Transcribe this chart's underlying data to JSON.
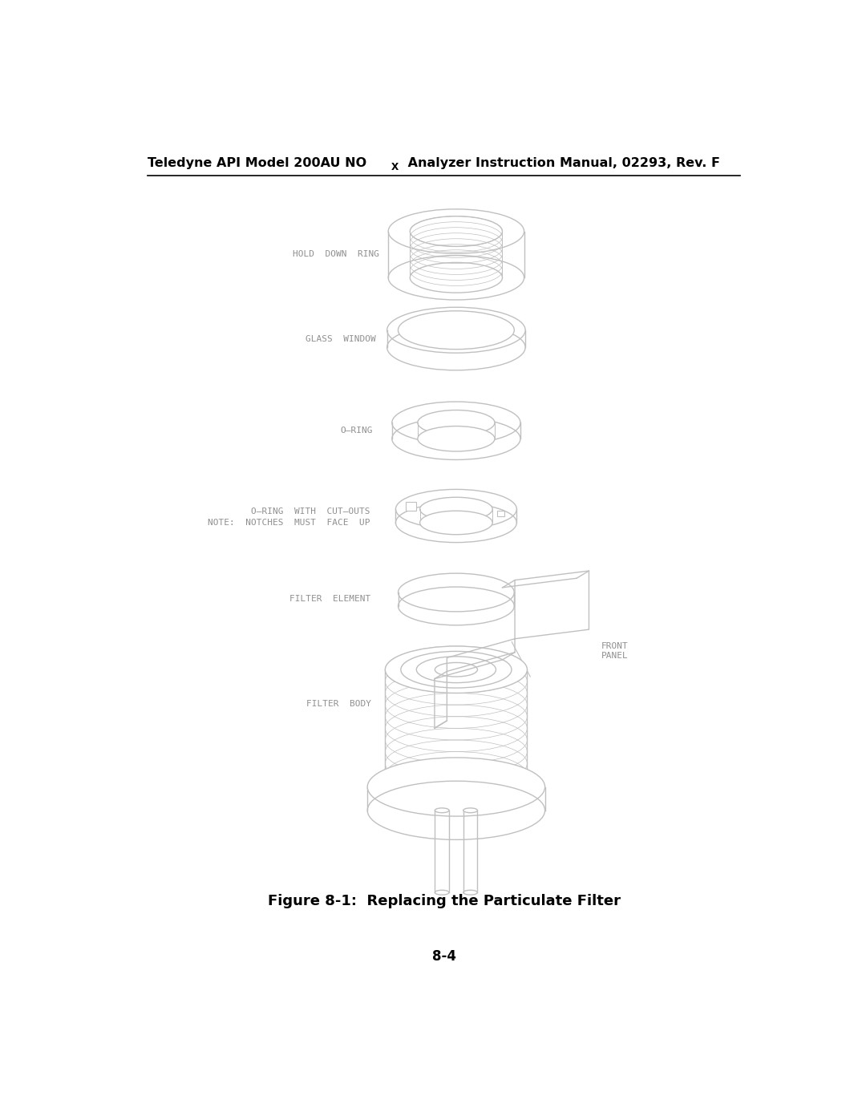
{
  "page_title_main": "Teledyne API Model 200AU NO",
  "page_title_sub": "X",
  "page_title_rest": " Analyzer Instruction Manual, 02293, Rev. F",
  "figure_caption": "Figure 8-1:  Replacing the Particulate Filter",
  "page_number": "8-4",
  "background_color": "#ffffff",
  "line_color": "#c0c0c0",
  "text_color": "#909090",
  "header_text_color": "#000000",
  "caption_color": "#000000",
  "labels": {
    "hold_down_ring": "HOLD  DOWN  RING",
    "glass_window": "GLASS  WINDOW",
    "o_ring": "O–RING",
    "o_ring_cutouts": "O–RING  WITH  CUT–OUTS",
    "note": "NOTE:  NOTCHES  MUST  FACE  UP",
    "filter_element": "FILTER  ELEMENT",
    "filter_body": "FILTER  BODY",
    "front_panel": "FRONT\nPANEL"
  },
  "title_fontsize": 11.5,
  "label_fontsize": 8.0,
  "caption_fontsize": 13,
  "page_num_fontsize": 12
}
